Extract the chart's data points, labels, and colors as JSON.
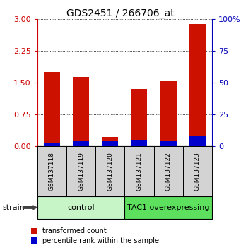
{
  "title": "GDS2451 / 266706_at",
  "samples": [
    "GSM137118",
    "GSM137119",
    "GSM137120",
    "GSM137121",
    "GSM137122",
    "GSM137123"
  ],
  "red_values": [
    1.75,
    1.63,
    0.22,
    1.35,
    1.54,
    2.87
  ],
  "blue_values_pct": [
    3,
    4,
    4,
    5,
    4,
    8
  ],
  "ylim_left": [
    0,
    3
  ],
  "ylim_right": [
    0,
    100
  ],
  "yticks_left": [
    0,
    0.75,
    1.5,
    2.25,
    3
  ],
  "yticks_right": [
    0,
    25,
    50,
    75,
    100
  ],
  "groups": [
    {
      "label": "control",
      "start": 0,
      "end": 3,
      "color": "#c8f5c8"
    },
    {
      "label": "TAC1 overexpressing",
      "start": 3,
      "end": 6,
      "color": "#5de05d"
    }
  ],
  "bar_color_red": "#cc1100",
  "bar_color_blue": "#0000cc",
  "bar_width": 0.55,
  "axis_color_left": "#cc0000",
  "axis_color_right": "#0000bb",
  "legend_red_label": "transformed count",
  "legend_blue_label": "percentile rank within the sample",
  "strain_label": "strain",
  "background_color": "#ffffff",
  "sample_box_color": "#d3d3d3",
  "title_fontsize": 10,
  "tick_fontsize": 8,
  "sample_fontsize": 6.5,
  "group_fontsize": 8,
  "legend_fontsize": 7
}
